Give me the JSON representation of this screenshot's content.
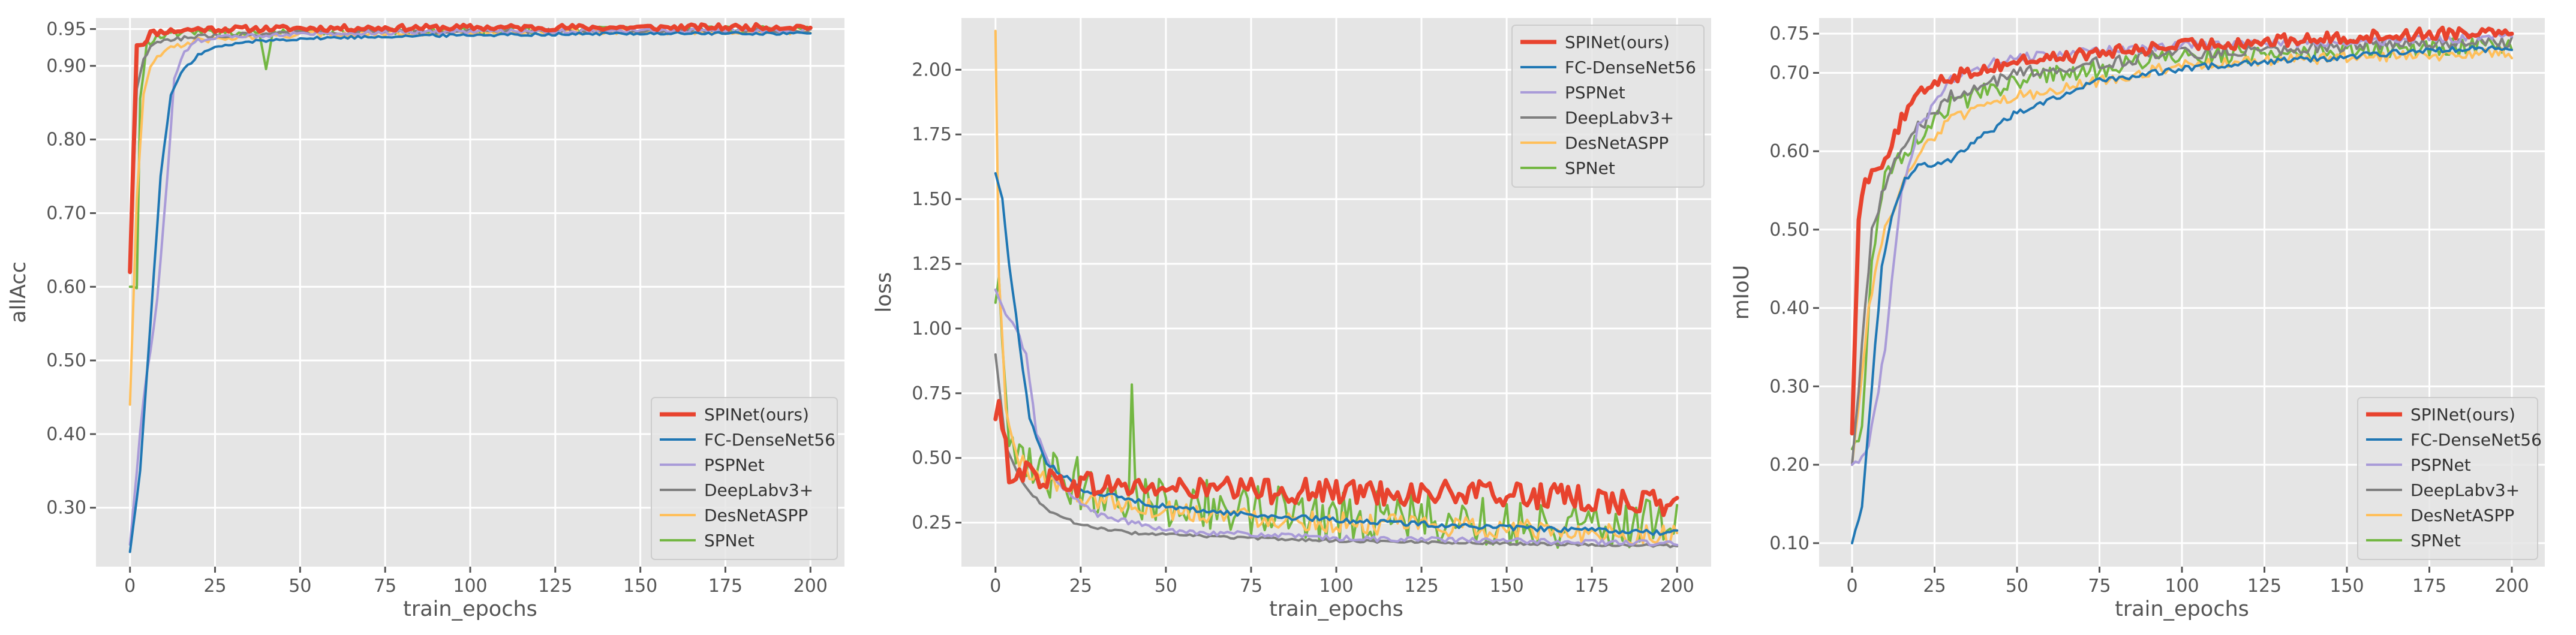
{
  "chart_data": [
    {
      "type": "line",
      "id": "allacc",
      "title": "",
      "xlabel": "train_epochs",
      "ylabel": "allAcc",
      "xlim": [
        -10,
        210
      ],
      "ylim": [
        0.22,
        0.965
      ],
      "xticks": [
        0,
        25,
        50,
        75,
        100,
        125,
        150,
        175,
        200
      ],
      "yticks": [
        0.3,
        0.4,
        0.5,
        0.6,
        0.7,
        0.8,
        0.9,
        0.95
      ],
      "ytick_labels": [
        "0.30",
        "0.40",
        "0.50",
        "0.60",
        "0.70",
        "0.80",
        "0.90",
        "0.95"
      ],
      "grid": true,
      "legend_location": "lower-right",
      "series": [
        {
          "name": "SPINet(ours)",
          "color": "#e8432e",
          "width": 7,
          "points": [
            [
              0,
              0.62
            ],
            [
              2,
              0.93
            ],
            [
              4,
              0.93
            ],
            [
              6,
              0.945
            ],
            [
              8,
              0.945
            ],
            [
              10,
              0.947
            ],
            [
              15,
              0.948
            ],
            [
              20,
              0.95
            ],
            [
              25,
              0.95
            ],
            [
              50,
              0.951
            ],
            [
              100,
              0.952
            ],
            [
              150,
              0.952
            ],
            [
              200,
              0.953
            ]
          ],
          "noise": 0.004
        },
        {
          "name": "FC-DenseNet56",
          "color": "#1f77b4",
          "width": 4,
          "points": [
            [
              0,
              0.24
            ],
            [
              3,
              0.35
            ],
            [
              6,
              0.55
            ],
            [
              9,
              0.75
            ],
            [
              12,
              0.86
            ],
            [
              15,
              0.89
            ],
            [
              20,
              0.915
            ],
            [
              25,
              0.925
            ],
            [
              35,
              0.933
            ],
            [
              50,
              0.937
            ],
            [
              75,
              0.94
            ],
            [
              100,
              0.942
            ],
            [
              150,
              0.944
            ],
            [
              200,
              0.944
            ]
          ],
          "noise": 0.002
        },
        {
          "name": "PSPNet",
          "color": "#a99bd8",
          "width": 4,
          "points": [
            [
              0,
              0.25
            ],
            [
              4,
              0.45
            ],
            [
              8,
              0.58
            ],
            [
              11,
              0.75
            ],
            [
              13,
              0.88
            ],
            [
              16,
              0.92
            ],
            [
              20,
              0.935
            ],
            [
              30,
              0.94
            ],
            [
              50,
              0.944
            ],
            [
              100,
              0.947
            ],
            [
              200,
              0.948
            ]
          ],
          "noise": 0.003
        },
        {
          "name": "DeepLabv3+",
          "color": "#7f7f7f",
          "width": 4,
          "points": [
            [
              0,
              0.62
            ],
            [
              2,
              0.87
            ],
            [
              4,
              0.91
            ],
            [
              6,
              0.925
            ],
            [
              10,
              0.935
            ],
            [
              20,
              0.94
            ],
            [
              50,
              0.945
            ],
            [
              100,
              0.947
            ],
            [
              200,
              0.948
            ]
          ],
          "noise": 0.003
        },
        {
          "name": "DesNetASPP",
          "color": "#ffbf5a",
          "width": 4,
          "points": [
            [
              0,
              0.44
            ],
            [
              2,
              0.72
            ],
            [
              4,
              0.86
            ],
            [
              6,
              0.9
            ],
            [
              10,
              0.92
            ],
            [
              20,
              0.935
            ],
            [
              50,
              0.943
            ],
            [
              100,
              0.946
            ],
            [
              200,
              0.947
            ]
          ],
          "noise": 0.004
        },
        {
          "name": "SPNet",
          "color": "#73b742",
          "width": 4,
          "points": [
            [
              0,
              0.6
            ],
            [
              2,
              0.6
            ],
            [
              3,
              0.86
            ],
            [
              5,
              0.93
            ],
            [
              8,
              0.94
            ],
            [
              15,
              0.945
            ],
            [
              38,
              0.945
            ],
            [
              40,
              0.9
            ],
            [
              42,
              0.945
            ],
            [
              100,
              0.948
            ],
            [
              200,
              0.95
            ]
          ],
          "noise": 0.005
        }
      ]
    },
    {
      "type": "line",
      "id": "loss",
      "title": "",
      "xlabel": "train_epochs",
      "ylabel": "loss",
      "xlim": [
        -10,
        210
      ],
      "ylim": [
        0.08,
        2.2
      ],
      "xticks": [
        0,
        25,
        50,
        75,
        100,
        125,
        150,
        175,
        200
      ],
      "yticks": [
        0.25,
        0.5,
        0.75,
        1.0,
        1.25,
        1.5,
        1.75,
        2.0
      ],
      "ytick_labels": [
        "0.25",
        "0.50",
        "0.75",
        "1.00",
        "1.25",
        "1.50",
        "1.75",
        "2.00"
      ],
      "grid": true,
      "legend_location": "upper-right",
      "series": [
        {
          "name": "SPINet(ours)",
          "color": "#e8432e",
          "width": 7,
          "points": [
            [
              0,
              0.65
            ],
            [
              1,
              0.72
            ],
            [
              2,
              0.6
            ],
            [
              4,
              0.45
            ],
            [
              8,
              0.45
            ],
            [
              15,
              0.42
            ],
            [
              25,
              0.4
            ],
            [
              50,
              0.38
            ],
            [
              100,
              0.37
            ],
            [
              150,
              0.36
            ],
            [
              200,
              0.32
            ]
          ],
          "noise": 0.05
        },
        {
          "name": "FC-DenseNet56",
          "color": "#1f77b4",
          "width": 4,
          "points": [
            [
              0,
              1.6
            ],
            [
              2,
              1.5
            ],
            [
              4,
              1.25
            ],
            [
              7,
              0.95
            ],
            [
              10,
              0.65
            ],
            [
              15,
              0.48
            ],
            [
              25,
              0.38
            ],
            [
              50,
              0.31
            ],
            [
              75,
              0.28
            ],
            [
              100,
              0.26
            ],
            [
              150,
              0.23
            ],
            [
              200,
              0.21
            ]
          ],
          "noise": 0.01
        },
        {
          "name": "PSPNet",
          "color": "#a99bd8",
          "width": 4,
          "points": [
            [
              0,
              1.15
            ],
            [
              3,
              1.05
            ],
            [
              6,
              1.0
            ],
            [
              9,
              0.9
            ],
            [
              12,
              0.6
            ],
            [
              18,
              0.4
            ],
            [
              30,
              0.28
            ],
            [
              50,
              0.22
            ],
            [
              100,
              0.19
            ],
            [
              200,
              0.17
            ]
          ],
          "noise": 0.01
        },
        {
          "name": "DeepLabv3+",
          "color": "#7f7f7f",
          "width": 4,
          "points": [
            [
              0,
              0.9
            ],
            [
              3,
              0.55
            ],
            [
              8,
              0.4
            ],
            [
              15,
              0.3
            ],
            [
              25,
              0.24
            ],
            [
              40,
              0.21
            ],
            [
              75,
              0.19
            ],
            [
              100,
              0.18
            ],
            [
              200,
              0.16
            ]
          ],
          "noise": 0.005
        },
        {
          "name": "DesNetASPP",
          "color": "#ffbf5a",
          "width": 4,
          "points": [
            [
              0,
              2.15
            ],
            [
              1,
              1.2
            ],
            [
              3,
              0.7
            ],
            [
              6,
              0.5
            ],
            [
              10,
              0.45
            ],
            [
              25,
              0.35
            ],
            [
              50,
              0.3
            ],
            [
              100,
              0.25
            ],
            [
              200,
              0.2
            ]
          ],
          "noise": 0.04
        },
        {
          "name": "SPNet",
          "color": "#73b742",
          "width": 4,
          "points": [
            [
              0,
              1.1
            ],
            [
              1,
              1.2
            ],
            [
              2,
              0.9
            ],
            [
              4,
              0.5
            ],
            [
              10,
              0.45
            ],
            [
              25,
              0.4
            ],
            [
              39,
              0.35
            ],
            [
              40,
              0.78
            ],
            [
              41,
              0.35
            ],
            [
              75,
              0.3
            ],
            [
              100,
              0.28
            ],
            [
              150,
              0.25
            ],
            [
              200,
              0.25
            ]
          ],
          "noise": 0.1
        }
      ]
    },
    {
      "type": "line",
      "id": "miou",
      "title": "",
      "xlabel": "train_epochs",
      "ylabel": "mIoU",
      "xlim": [
        -10,
        210
      ],
      "ylim": [
        0.07,
        0.77
      ],
      "xticks": [
        0,
        25,
        50,
        75,
        100,
        125,
        150,
        175,
        200
      ],
      "yticks": [
        0.1,
        0.2,
        0.3,
        0.4,
        0.5,
        0.6,
        0.7,
        0.75
      ],
      "ytick_labels": [
        "0.10",
        "0.20",
        "0.30",
        "0.40",
        "0.50",
        "0.60",
        "0.70",
        "0.75"
      ],
      "grid": true,
      "legend_location": "lower-right",
      "series": [
        {
          "name": "SPINet(ours)",
          "color": "#e8432e",
          "width": 7,
          "points": [
            [
              0,
              0.24
            ],
            [
              2,
              0.52
            ],
            [
              4,
              0.56
            ],
            [
              7,
              0.58
            ],
            [
              10,
              0.59
            ],
            [
              15,
              0.64
            ],
            [
              20,
              0.67
            ],
            [
              25,
              0.69
            ],
            [
              50,
              0.715
            ],
            [
              75,
              0.725
            ],
            [
              100,
              0.735
            ],
            [
              125,
              0.74
            ],
            [
              150,
              0.745
            ],
            [
              175,
              0.75
            ],
            [
              200,
              0.755
            ]
          ],
          "noise": 0.008
        },
        {
          "name": "FC-DenseNet56",
          "color": "#1f77b4",
          "width": 4,
          "points": [
            [
              0,
              0.1
            ],
            [
              3,
              0.15
            ],
            [
              6,
              0.3
            ],
            [
              9,
              0.45
            ],
            [
              12,
              0.52
            ],
            [
              16,
              0.565
            ],
            [
              20,
              0.58
            ],
            [
              30,
              0.59
            ],
            [
              40,
              0.62
            ],
            [
              50,
              0.65
            ],
            [
              75,
              0.69
            ],
            [
              100,
              0.705
            ],
            [
              125,
              0.715
            ],
            [
              150,
              0.72
            ],
            [
              175,
              0.73
            ],
            [
              200,
              0.73
            ]
          ],
          "noise": 0.004
        },
        {
          "name": "PSPNet",
          "color": "#a99bd8",
          "width": 4,
          "points": [
            [
              0,
              0.2
            ],
            [
              5,
              0.22
            ],
            [
              10,
              0.35
            ],
            [
              15,
              0.55
            ],
            [
              20,
              0.63
            ],
            [
              30,
              0.69
            ],
            [
              40,
              0.71
            ],
            [
              50,
              0.72
            ],
            [
              100,
              0.735
            ],
            [
              150,
              0.74
            ],
            [
              200,
              0.745
            ]
          ],
          "noise": 0.006
        },
        {
          "name": "DeepLabv3+",
          "color": "#7f7f7f",
          "width": 4,
          "points": [
            [
              0,
              0.2
            ],
            [
              3,
              0.35
            ],
            [
              6,
              0.5
            ],
            [
              10,
              0.56
            ],
            [
              15,
              0.6
            ],
            [
              20,
              0.63
            ],
            [
              30,
              0.67
            ],
            [
              50,
              0.7
            ],
            [
              100,
              0.725
            ],
            [
              150,
              0.735
            ],
            [
              200,
              0.74
            ]
          ],
          "noise": 0.008
        },
        {
          "name": "DesNetASPP",
          "color": "#ffbf5a",
          "width": 4,
          "points": [
            [
              0,
              0.2
            ],
            [
              5,
              0.4
            ],
            [
              10,
              0.5
            ],
            [
              20,
              0.6
            ],
            [
              30,
              0.64
            ],
            [
              50,
              0.67
            ],
            [
              75,
              0.69
            ],
            [
              100,
              0.71
            ],
            [
              150,
              0.72
            ],
            [
              200,
              0.725
            ]
          ],
          "noise": 0.007
        },
        {
          "name": "SPNet",
          "color": "#73b742",
          "width": 4,
          "points": [
            [
              0,
              0.22
            ],
            [
              3,
              0.25
            ],
            [
              6,
              0.45
            ],
            [
              10,
              0.57
            ],
            [
              20,
              0.62
            ],
            [
              30,
              0.66
            ],
            [
              50,
              0.69
            ],
            [
              100,
              0.72
            ],
            [
              150,
              0.73
            ],
            [
              200,
              0.735
            ]
          ],
          "noise": 0.012
        }
      ]
    }
  ]
}
